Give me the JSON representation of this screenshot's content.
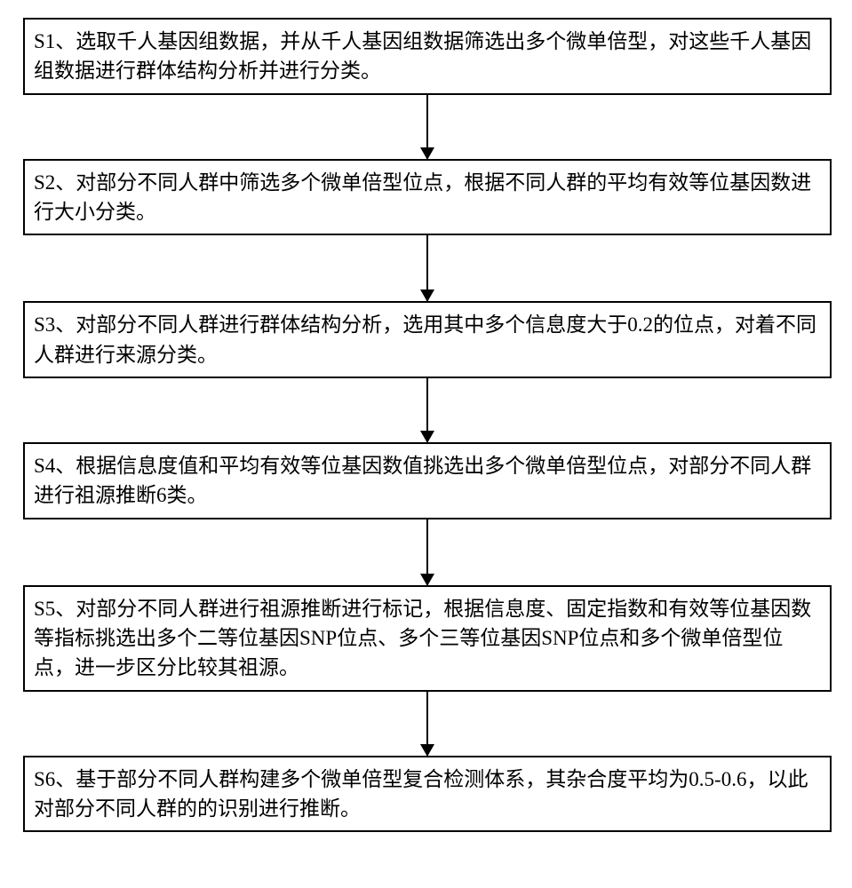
{
  "flowchart": {
    "type": "flowchart",
    "direction": "vertical",
    "box_border_color": "#000000",
    "box_border_width": 2,
    "box_background": "#ffffff",
    "text_color": "#000000",
    "font_size": 23,
    "font_family": "SimSun",
    "line_height": 1.45,
    "arrow_color": "#000000",
    "arrow_line_width": 2,
    "arrow_head_width": 16,
    "arrow_head_height": 14,
    "container_width": 910,
    "steps": [
      {
        "id": "S1",
        "text": "S1、选取千人基因组数据，并从千人基因组数据筛选出多个微单倍型，对这些千人基因组数据进行群体结构分析并进行分类。",
        "arrow_after_height": 72
      },
      {
        "id": "S2",
        "text": "S2、对部分不同人群中筛选多个微单倍型位点，根据不同人群的平均有效等位基因数进行大小分类。",
        "arrow_after_height": 74
      },
      {
        "id": "S3",
        "text": "S3、对部分不同人群进行群体结构分析，选用其中多个信息度大于0.2的位点，对着不同人群进行来源分类。",
        "arrow_after_height": 72
      },
      {
        "id": "S4",
        "text": "S4、根据信息度值和平均有效等位基因数值挑选出多个微单倍型位点，对部分不同人群进行祖源推断6类。",
        "arrow_after_height": 74
      },
      {
        "id": "S5",
        "text": "S5、对部分不同人群进行祖源推断进行标记，根据信息度、固定指数和有效等位基因数等指标挑选出多个二等位基因SNP位点、多个三等位基因SNP位点和多个微单倍型位点，进一步区分比较其祖源。",
        "arrow_after_height": 72
      },
      {
        "id": "S6",
        "text": "S6、基于部分不同人群构建多个微单倍型复合检测体系，其杂合度平均为0.5-0.6，以此对部分不同人群的的识别进行推断。",
        "arrow_after_height": 0
      }
    ]
  }
}
